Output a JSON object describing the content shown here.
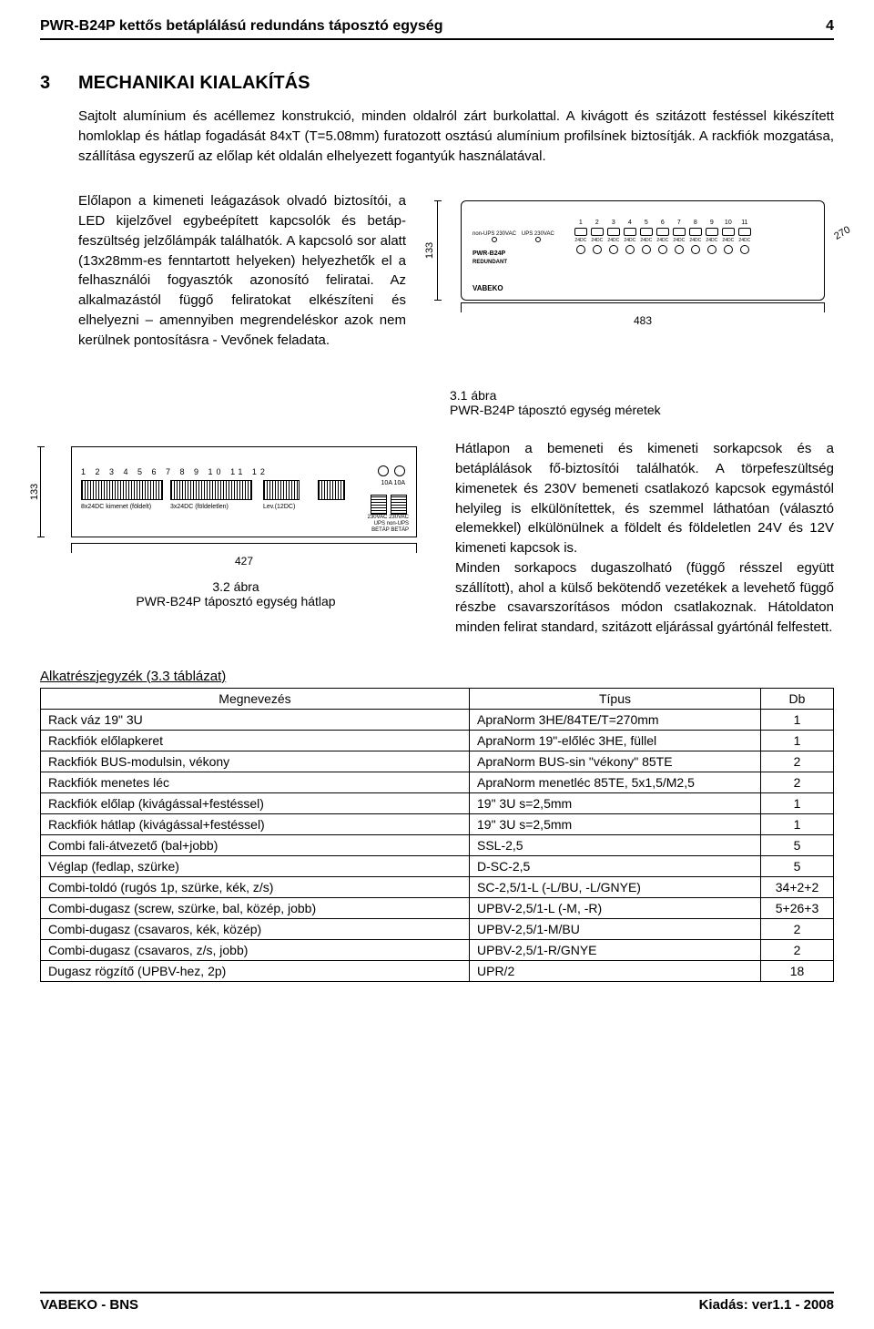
{
  "header": {
    "title": "PWR-B24P kettős betáplálású redundáns táposztó egység",
    "page": "4"
  },
  "section": {
    "num": "3",
    "title": "MECHANIKAI KIALAKÍTÁS"
  },
  "intro": "Sajtolt alumínium és acéllemez konstrukció, minden oldalról zárt burkolattal. A kivágott és szitázott festéssel kikészített homloklap és hátlap fogadását 84xT (T=5.08mm) furatozott osztású alumínium profilsínek biztosítják. A rackfiók mozgatása, szállítása egyszerű az előlap két oldalán elhelyezett fogantyúk használatával.",
  "left_para": "Előlapon a kimeneti leágazások olvadó biztosítói, a LED kijelzővel egybeépített kapcsolók és betáp-feszültség jelzőlámpák találhatók. A kapcsoló sor alatt (13x28mm-es fenntartott helyeken) helyezhetők el a felhasználói fogyasztók azonosító feliratai. Az alkalmazástól függő feliratokat elkészíteni és elhelyezni – amennyiben megrendeléskor azok nem kerülnek pontosításra - Vevőnek feladata.",
  "fig31": {
    "height_label": "133",
    "width_label": "483",
    "depth_label": "270",
    "inputs": [
      "non-UPS 230VAC",
      "UPS 230VAC"
    ],
    "model": "PWR-B24P",
    "redund": "REDUNDANT",
    "brand": "VABEKO",
    "slots": [
      "1",
      "2",
      "3",
      "4",
      "5",
      "6",
      "7",
      "8",
      "9",
      "10",
      "11"
    ],
    "slot_label": "24DC",
    "caption_line1": "3.1 ábra",
    "caption_line2": "PWR-B24P táposztó egység méretek"
  },
  "fig32": {
    "height_label": "133",
    "width_label": "427",
    "nums": "1 2 3 4 5 6 7 8  9 10 11  12",
    "l1": "8x24DC kimenet (földelt)",
    "l2": "3x24DC (földeletlen)",
    "l3": "Lev.(12DC)",
    "fuse_lbl": "10A 10A",
    "ac_lbl": "230VAC 230VAC\nUPS non-UPS\nBETÁP BETÁP",
    "caption_line1": "3.2 ábra",
    "caption_line2": "PWR-B24P táposztó egység hátlap"
  },
  "right_para": "Hátlapon a bemeneti és kimeneti sorkapcsok és a betáplálások fő-biztosítói találhatók. A törpefeszültség kimenetek és 230V bemeneti csatlakozó kapcsok egymástól helyileg is elkülönítettek, és szemmel láthatóan (választó elemekkel) elkülönülnek a földelt és földeletlen 24V és 12V kimeneti kapcsok is.\nMinden sorkapocs dugaszolható (függő résszel együtt szállított), ahol a külső bekötendő vezetékek a levehető függő részbe csavarszorításos módon csatlakoznak. Hátoldaton minden felirat standard, szitázott eljárással gyártónál felfestett.",
  "table": {
    "caption": "Alkatrészjegyzék (3.3 táblázat)",
    "headers": [
      "Megnevezés",
      "Típus",
      "Db"
    ],
    "rows": [
      [
        "Rack váz 19\" 3U",
        "ApraNorm 3HE/84TE/T=270mm",
        "1"
      ],
      [
        "Rackfiók előlapkeret",
        "ApraNorm 19\"-előléc 3HE, füllel",
        "1"
      ],
      [
        "Rackfiók BUS-modulsin, vékony",
        "ApraNorm BUS-sin \"vékony\" 85TE",
        "2"
      ],
      [
        "Rackfiók menetes léc",
        "ApraNorm menetléc 85TE, 5x1,5/M2,5",
        "2"
      ],
      [
        "Rackfiók előlap (kivágással+festéssel)",
        "19\" 3U s=2,5mm",
        "1"
      ],
      [
        "Rackfiók hátlap (kivágással+festéssel)",
        "19\" 3U s=2,5mm",
        "1"
      ],
      [
        "Combi fali-átvezető (bal+jobb)",
        "SSL-2,5",
        "5"
      ],
      [
        "Véglap (fedlap, szürke)",
        "D-SC-2,5",
        "5"
      ],
      [
        "Combi-toldó (rugós 1p, szürke, kék, z/s)",
        "SC-2,5/1-L (-L/BU, -L/GNYE)",
        "34+2+2"
      ],
      [
        "Combi-dugasz (screw, szürke, bal, közép, jobb)",
        "UPBV-2,5/1-L (-M, -R)",
        "5+26+3"
      ],
      [
        "Combi-dugasz (csavaros, kék, közép)",
        "UPBV-2,5/1-M/BU",
        "2"
      ],
      [
        "Combi-dugasz (csavaros, z/s, jobb)",
        "UPBV-2,5/1-R/GNYE",
        "2"
      ],
      [
        "Dugasz rögzítő (UPBV-hez, 2p)",
        "UPR/2",
        "18"
      ]
    ]
  },
  "footer": {
    "left": "VABEKO - BNS",
    "right": "Kiadás: ver1.1 - 2008"
  }
}
